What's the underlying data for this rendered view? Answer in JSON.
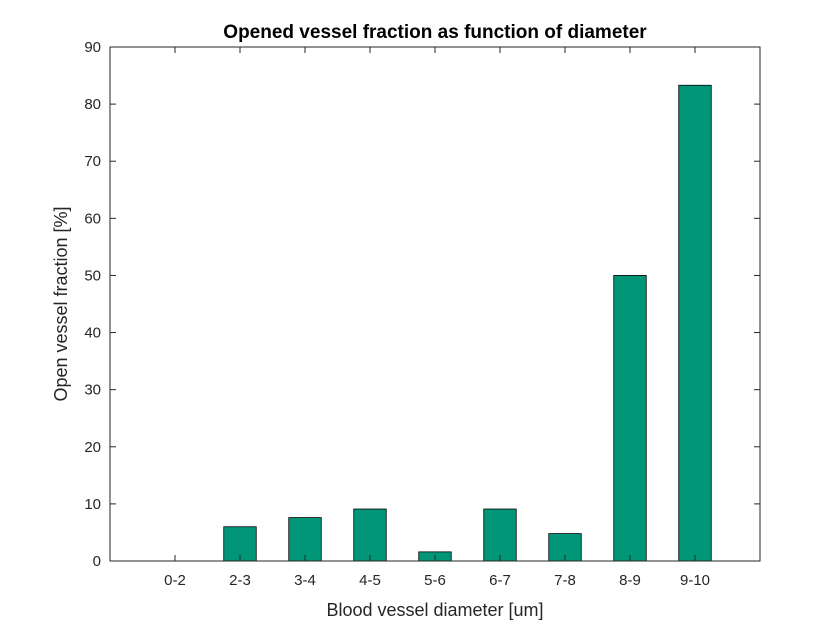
{
  "chart_data": {
    "type": "bar",
    "title": "Opened vessel fraction as function of diameter",
    "xlabel": "Blood vessel diameter [um]",
    "ylabel": "Open vessel fraction [%]",
    "categories": [
      "0-2",
      "2-3",
      "3-4",
      "4-5",
      "5-6",
      "6-7",
      "7-8",
      "8-9",
      "9-10"
    ],
    "values": [
      0,
      6,
      7.6,
      9.1,
      1.6,
      9.1,
      4.8,
      50,
      83.3
    ],
    "ylim": [
      0,
      90
    ],
    "yticks": [
      0,
      10,
      20,
      30,
      40,
      50,
      60,
      70,
      80,
      90
    ],
    "bar_color": "#009677",
    "grid": false,
    "legend": "none"
  }
}
